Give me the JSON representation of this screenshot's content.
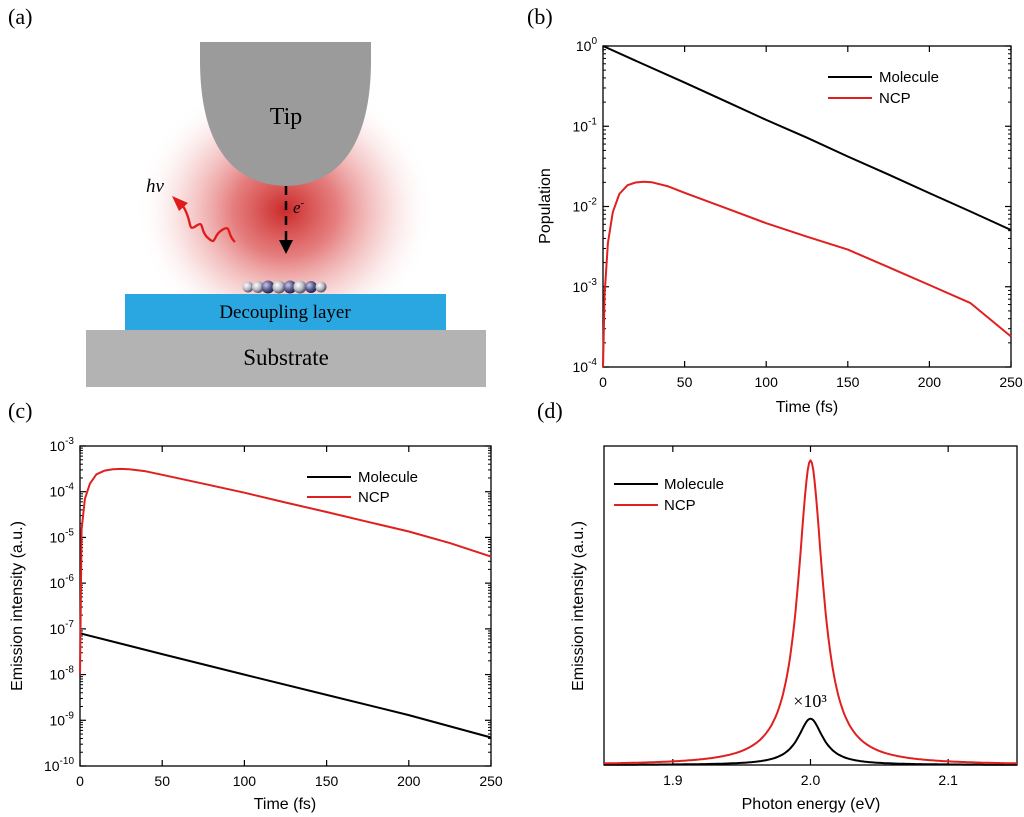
{
  "panels": {
    "a": {
      "label": "(a)",
      "tip": "Tip",
      "decoupling": "Decoupling layer",
      "substrate": "Substrate",
      "photon": "hv",
      "electron": "e",
      "electron_sup": "-",
      "colors": {
        "tip": "#9b9b9b",
        "substrate": "#b3b3b3",
        "decoupling": "#2aa7e0",
        "glow": "#d32b2b",
        "photon": "#e01b1b"
      }
    },
    "b": {
      "label": "(b)"
    },
    "c": {
      "label": "(c)"
    },
    "d": {
      "label": "(d)",
      "annotation": "×10³"
    }
  },
  "chart_data": [
    {
      "id": "b",
      "type": "line",
      "xlabel": "Time (fs)",
      "ylabel": "Population",
      "xlim": [
        0,
        250
      ],
      "ylim": [
        0.0001,
        1
      ],
      "yscale": "log",
      "xticks": [
        0,
        50,
        100,
        150,
        200,
        250
      ],
      "yticks": [
        {
          "base": "10",
          "exp": "-4"
        },
        {
          "base": "10",
          "exp": "-3"
        },
        {
          "base": "10",
          "exp": "-2"
        },
        {
          "base": "10",
          "exp": "-1"
        },
        {
          "base": "10",
          "exp": "0"
        }
      ],
      "ytick_values": [
        0.0001,
        0.001,
        0.01,
        0.1,
        1
      ],
      "legend_position": "top-right",
      "series": [
        {
          "name": "Molecule",
          "color": "#000000",
          "x": [
            0,
            25,
            50,
            75,
            100,
            125,
            150,
            175,
            200,
            225,
            250
          ],
          "y": [
            1.0,
            0.59,
            0.35,
            0.205,
            0.12,
            0.072,
            0.042,
            0.025,
            0.0147,
            0.0087,
            0.0051
          ]
        },
        {
          "name": "NCP",
          "color": "#e02020",
          "x": [
            0,
            1,
            3,
            6,
            10,
            15,
            20,
            25,
            30,
            40,
            50,
            75,
            100,
            125,
            150,
            175,
            200,
            225,
            250
          ],
          "y": [
            0.0001,
            0.0008,
            0.0035,
            0.0085,
            0.0143,
            0.0184,
            0.0199,
            0.0203,
            0.02,
            0.0178,
            0.0148,
            0.0096,
            0.0062,
            0.0042,
            0.0029,
            0.00175,
            0.00105,
            0.00063,
            0.00024
          ]
        }
      ]
    },
    {
      "id": "c",
      "type": "line",
      "xlabel": "Time (fs)",
      "ylabel": "Emission intensity (a.u.)",
      "xlim": [
        0,
        250
      ],
      "ylim": [
        1e-10,
        0.001
      ],
      "yscale": "log",
      "xticks": [
        0,
        50,
        100,
        150,
        200,
        250
      ],
      "yticks": [
        {
          "base": "10",
          "exp": "-10"
        },
        {
          "base": "10",
          "exp": "-9"
        },
        {
          "base": "10",
          "exp": "-8"
        },
        {
          "base": "10",
          "exp": "-7"
        },
        {
          "base": "10",
          "exp": "-6"
        },
        {
          "base": "10",
          "exp": "-5"
        },
        {
          "base": "10",
          "exp": "-4"
        },
        {
          "base": "10",
          "exp": "-3"
        }
      ],
      "ytick_values": [
        1e-10,
        1e-09,
        1e-08,
        1e-07,
        1e-06,
        1e-05,
        0.0001,
        0.001
      ],
      "legend_position": "top-right",
      "series": [
        {
          "name": "Molecule",
          "color": "#000000",
          "x": [
            0,
            50,
            100,
            150,
            200,
            250
          ],
          "y": [
            8e-08,
            2.8e-08,
            1e-08,
            3.6e-09,
            1.3e-09,
            4.2e-10
          ]
        },
        {
          "name": "NCP",
          "color": "#e02020",
          "x": [
            0,
            1,
            3,
            6,
            10,
            15,
            20,
            25,
            30,
            40,
            50,
            75,
            100,
            125,
            150,
            175,
            200,
            225,
            250
          ],
          "y": [
            1e-08,
            1.5e-05,
            7e-05,
            0.00015,
            0.00024,
            0.00029,
            0.00031,
            0.000315,
            0.00031,
            0.00028,
            0.000235,
            0.00015,
            9.5e-05,
            5.8e-05,
            3.6e-05,
            2.2e-05,
            1.35e-05,
            7.5e-06,
            3.8e-06
          ]
        }
      ]
    },
    {
      "id": "d",
      "type": "line",
      "xlabel": "Photon energy (eV)",
      "ylabel": "Emission intensity (a.u.)",
      "xlim": [
        1.85,
        2.15
      ],
      "ylim": [
        0,
        1.0
      ],
      "xticks": [
        1.9,
        2.0,
        2.1
      ],
      "yticks_shown": false,
      "legend_position": "top-left",
      "series": [
        {
          "name": "Molecule",
          "color": "#000000",
          "shape": "lorentzian",
          "center": 2.0,
          "peak": 0.145,
          "hwhm": 0.011
        },
        {
          "name": "NCP",
          "color": "#e02020",
          "shape": "lorentzian",
          "center": 2.0,
          "peak": 0.955,
          "hwhm": 0.011
        }
      ]
    }
  ]
}
